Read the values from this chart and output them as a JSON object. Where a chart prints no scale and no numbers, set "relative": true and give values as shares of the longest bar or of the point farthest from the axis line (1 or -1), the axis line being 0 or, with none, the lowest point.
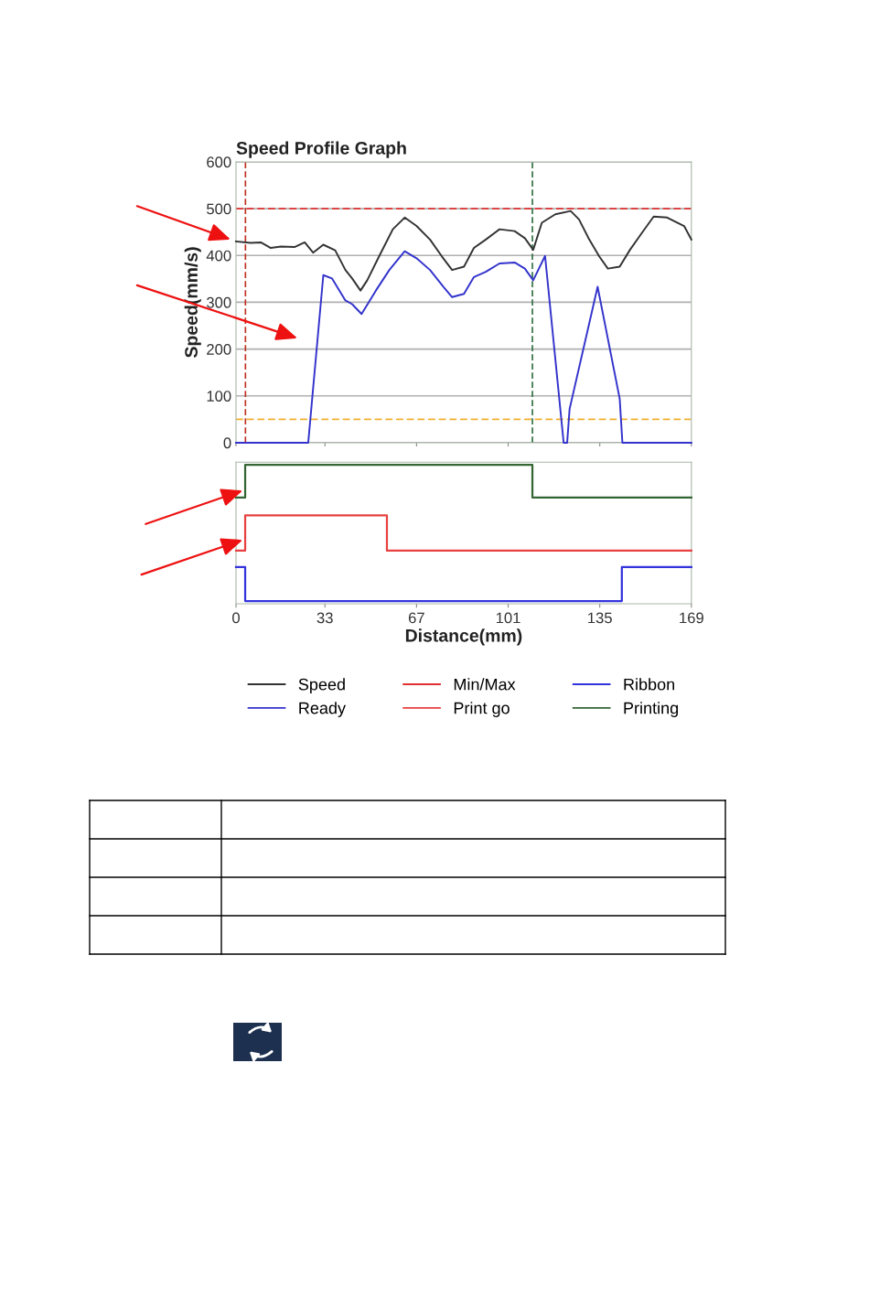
{
  "chart_data": [
    {
      "type": "line",
      "title": "Speed Profile Graph",
      "ylabel": "Speed(mm/s)",
      "xlim": [
        0,
        169
      ],
      "xticks": [
        0,
        33,
        67,
        101,
        135,
        169
      ],
      "ylim": [
        0,
        600
      ],
      "yticks": [
        0,
        100,
        200,
        300,
        400,
        500,
        600
      ],
      "grid": "y",
      "tick_labels": "y",
      "legend": "bottom",
      "series": [
        {
          "name": "Speed",
          "color": "#333333",
          "x": [
            0,
            5.4,
            9.2,
            12.9,
            16.7,
            21.7,
            25.5,
            28.6,
            32.4,
            36.8,
            40.6,
            43.1,
            46.2,
            48.7,
            53.1,
            58.2,
            62.6,
            67.0,
            72.0,
            76.4,
            80.2,
            84.6,
            88.3,
            92.7,
            97.8,
            103.4,
            107.2,
            110.3,
            113.5,
            118.5,
            124.2,
            127.3,
            131.1,
            134.8,
            138.0,
            142.4,
            146.2,
            150.6,
            155.0,
            160.0,
            166.3,
            169
          ],
          "values": [
            430,
            427,
            428,
            416,
            419,
            418,
            428,
            406,
            423,
            411,
            369,
            351,
            325,
            347,
            398,
            456,
            481,
            463,
            434,
            398,
            369,
            376,
            416,
            434,
            456,
            452,
            437,
            412,
            470,
            488,
            495,
            477,
            434,
            398,
            372,
            376,
            412,
            448,
            483,
            481,
            463,
            434
          ]
        },
        {
          "name": "Ready",
          "color": "#3333cc",
          "x": [
            0,
            26.8,
            32.4,
            35.6,
            40.6,
            43.1,
            46.6,
            51.9,
            56.9,
            62.6,
            67.0,
            72.0,
            77.0,
            80.2,
            84.6,
            88.3,
            92.7,
            97.8,
            103.4,
            107.2,
            110.3,
            114.7,
            121.6,
            122.9,
            123.8,
            134.2,
            142.4,
            143.4,
            169
          ],
          "values": [
            0,
            0,
            358,
            351,
            304,
            296,
            275,
            325,
            369,
            409,
            394,
            369,
            333,
            311,
            318,
            354,
            365,
            383,
            385,
            372,
            347,
            399,
            0,
            0,
            72,
            333,
            94,
            0,
            0
          ]
        }
      ],
      "ref_lines": [
        {
          "axis": "y",
          "value": 500,
          "label": "Min/Max",
          "color": "#e03030",
          "line_style": "dashed"
        },
        {
          "axis": "y",
          "value": 50,
          "color": "#f0b030",
          "line_style": "dashed"
        },
        {
          "axis": "x",
          "value": 3.5,
          "color": "#c03020",
          "line_style": "dashed"
        },
        {
          "axis": "x",
          "value": 110,
          "color": "#307040",
          "line_style": "dashed"
        }
      ]
    },
    {
      "type": "step",
      "relative": true,
      "xlabel": "Distance(mm)",
      "xlim": [
        0,
        169
      ],
      "xticks": [
        0,
        33,
        67,
        101,
        135,
        169
      ],
      "tick_labels": "x",
      "legend": "bottom",
      "series": [
        {
          "name": "Ribbon",
          "color": "#3333dd",
          "x": [
            0,
            3.4,
            143.2,
            169
          ],
          "values": [
            0.25,
            0,
            0.25,
            0.25
          ]
        },
        {
          "name": "Print go",
          "color": "#e84040",
          "x": [
            0,
            3.4,
            56,
            169
          ],
          "values": [
            0.37,
            0.63,
            0.37,
            0.37
          ]
        },
        {
          "name": "Printing",
          "color": "#336633",
          "x": [
            0,
            3.4,
            110,
            169
          ],
          "values": [
            0.76,
            1,
            0.76,
            0.76
          ]
        }
      ]
    }
  ]
}
